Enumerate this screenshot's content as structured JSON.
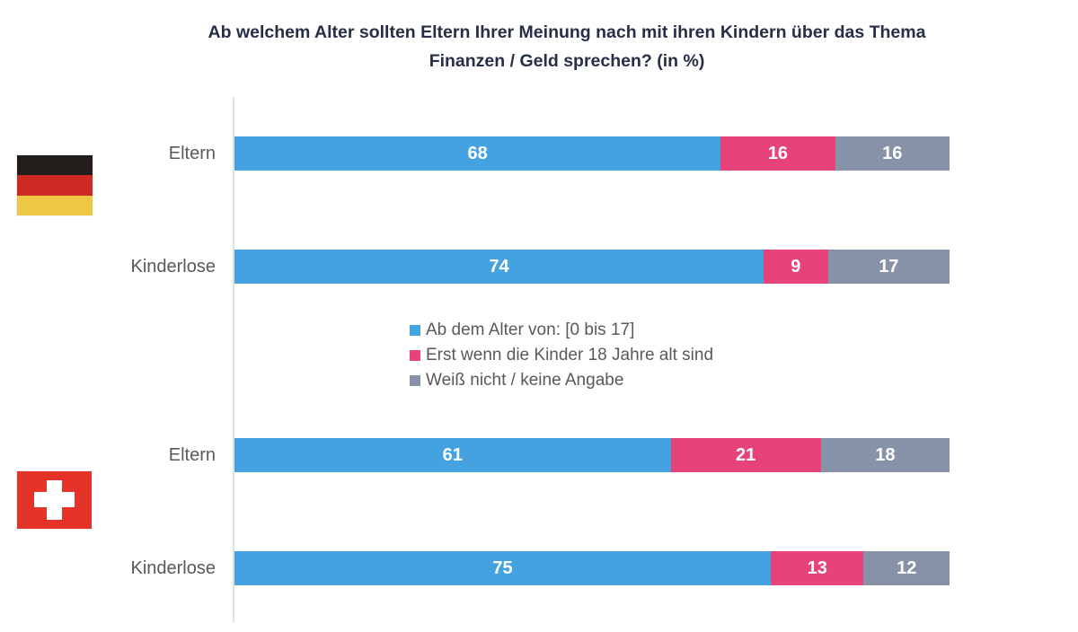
{
  "title": "Ab welchem Alter sollten Eltern Ihrer Meinung nach mit ihren Kindern über das Thema Finanzen / Geld sprechen? (in %)",
  "colors": {
    "series_blue": "#45a2e1",
    "series_pink": "#e8427a",
    "series_gray": "#8791a7",
    "title_text": "#262f45",
    "label_text": "#595959",
    "axis_line": "#e0e0e0",
    "flag_de_black": "#221d1a",
    "flag_de_red": "#cc2a22",
    "flag_de_gold": "#edc844",
    "flag_ch_red": "#e5332a"
  },
  "chart_data": {
    "type": "bar",
    "orientation": "horizontal",
    "stacked": true,
    "title": "Ab welchem Alter sollten Eltern Ihrer Meinung nach mit ihren Kindern über das Thema Finanzen / Geld sprechen? (in %)",
    "xlim": [
      0,
      100
    ],
    "grid": false,
    "legend_position": "center-between-groups",
    "series": [
      {
        "name": "Ab dem Alter von: [0 bis 17]",
        "color": "#45a2e1"
      },
      {
        "name": "Erst wenn die Kinder 18 Jahre alt sind",
        "color": "#e8427a"
      },
      {
        "name": "Weiß nicht / keine Angabe",
        "color": "#8791a7"
      }
    ],
    "groups": [
      {
        "country": "Germany",
        "flag_icon": "germany-flag",
        "rows": [
          {
            "label": "Eltern",
            "values": [
              68,
              16,
              16
            ]
          },
          {
            "label": "Kinderlose",
            "values": [
              74,
              9,
              17
            ]
          }
        ]
      },
      {
        "country": "Switzerland",
        "flag_icon": "switzerland-flag",
        "rows": [
          {
            "label": "Eltern",
            "values": [
              61,
              21,
              18
            ]
          },
          {
            "label": "Kinderlose",
            "values": [
              75,
              13,
              12
            ]
          }
        ]
      }
    ]
  }
}
